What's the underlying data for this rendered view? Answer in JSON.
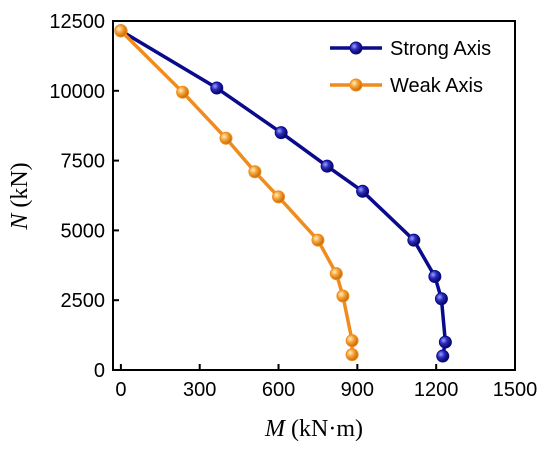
{
  "chart_data": {
    "type": "line",
    "xlabel_var": "M",
    "xlabel_unit": " (kN·m)",
    "ylabel_var": "N",
    "ylabel_unit": " (kN)",
    "xlim": [
      -30,
      1500
    ],
    "ylim": [
      0,
      12500
    ],
    "xticks": [
      0,
      300,
      600,
      900,
      1200,
      1500
    ],
    "yticks": [
      0,
      2500,
      5000,
      7500,
      10000,
      12500
    ],
    "grid": false,
    "legend_position": "top-right",
    "series": [
      {
        "name": "Strong Axis",
        "color": "#0a0a8c",
        "x": [
          0,
          365,
          610,
          785,
          920,
          1115,
          1195,
          1220,
          1235,
          1225
        ],
        "y": [
          12150,
          10100,
          8500,
          7300,
          6400,
          4650,
          3350,
          2550,
          1000,
          500
        ]
      },
      {
        "name": "Weak Axis",
        "color": "#f08c1e",
        "x": [
          0,
          235,
          400,
          510,
          600,
          750,
          820,
          845,
          880,
          880
        ],
        "y": [
          12150,
          9950,
          8300,
          7100,
          6200,
          4650,
          3450,
          2650,
          1050,
          550
        ]
      }
    ]
  }
}
